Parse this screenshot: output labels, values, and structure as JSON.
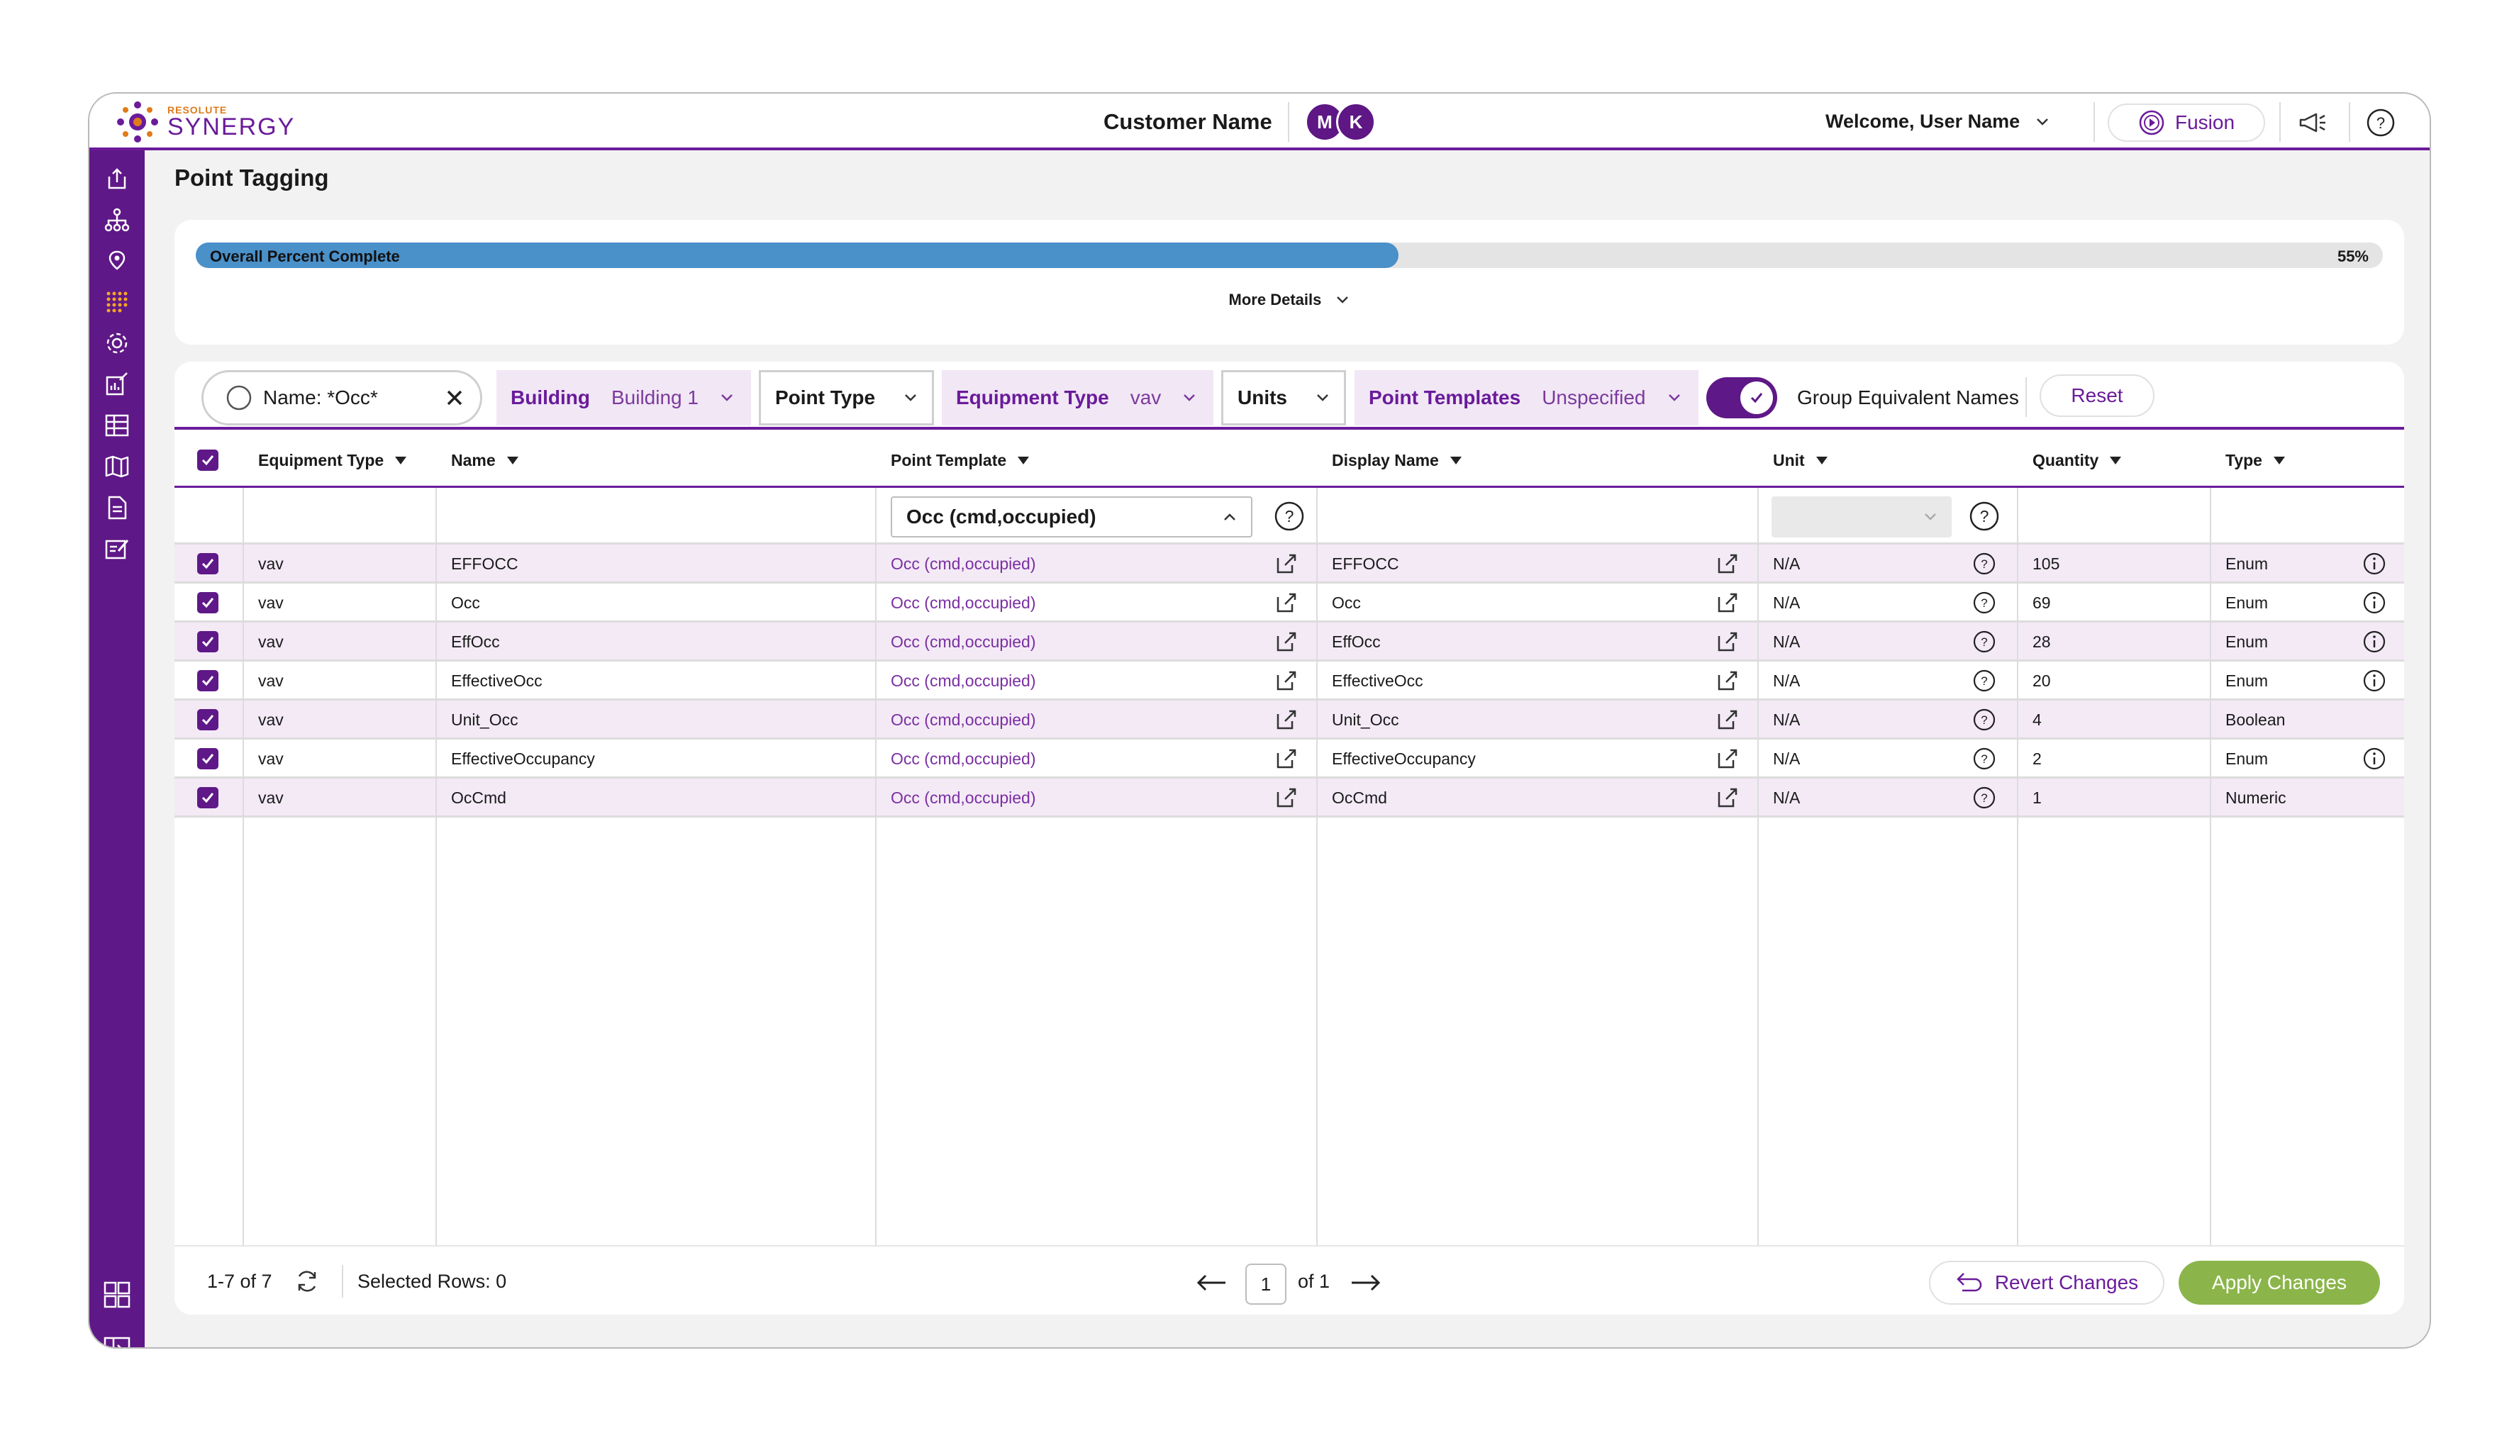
{
  "header": {
    "logo_small": "RESOLUTE",
    "logo_big": "SYNERGY",
    "customer_name": "Customer Name",
    "avatars": [
      "M",
      "K"
    ],
    "welcome": "Welcome, User Name",
    "fusion_label": "Fusion"
  },
  "page": {
    "title": "Point Tagging"
  },
  "progress": {
    "label": "Overall Percent Complete",
    "percent_text": "55%",
    "percent": 55,
    "more_details": "More Details"
  },
  "filters": {
    "search_value": "Name: *Occ*",
    "building": {
      "label": "Building",
      "value": "Building 1"
    },
    "point_type": {
      "label": "Point Type"
    },
    "equipment_type": {
      "label": "Equipment Type",
      "value": "vav"
    },
    "units": {
      "label": "Units"
    },
    "point_templates": {
      "label": "Point Templates",
      "value": "Unspecified"
    },
    "group_equivalent": {
      "label": "Group Equivalent Names",
      "on": true
    },
    "reset_label": "Reset"
  },
  "table": {
    "columns": [
      "Equipment Type",
      "Name",
      "Point Template",
      "Display Name",
      "Unit",
      "Quantity",
      "Type"
    ],
    "edit_row": {
      "point_template_value": "Occ (cmd,occupied)"
    },
    "rows": [
      {
        "equipment_type": "vav",
        "name": "EFFOCC",
        "point_template": "Occ (cmd,occupied)",
        "display_name": "EFFOCC",
        "unit": "N/A",
        "quantity": "105",
        "type": "Enum",
        "info": true,
        "checked": true
      },
      {
        "equipment_type": "vav",
        "name": "Occ",
        "point_template": "Occ (cmd,occupied)",
        "display_name": "Occ",
        "unit": "N/A",
        "quantity": "69",
        "type": "Enum",
        "info": true,
        "checked": true
      },
      {
        "equipment_type": "vav",
        "name": "EffOcc",
        "point_template": "Occ (cmd,occupied)",
        "display_name": "EffOcc",
        "unit": "N/A",
        "quantity": "28",
        "type": "Enum",
        "info": true,
        "checked": true
      },
      {
        "equipment_type": "vav",
        "name": "EffectiveOcc",
        "point_template": "Occ (cmd,occupied)",
        "display_name": "EffectiveOcc",
        "unit": "N/A",
        "quantity": "20",
        "type": "Enum",
        "info": true,
        "checked": true
      },
      {
        "equipment_type": "vav",
        "name": "Unit_Occ",
        "point_template": "Occ (cmd,occupied)",
        "display_name": "Unit_Occ",
        "unit": "N/A",
        "quantity": "4",
        "type": "Boolean",
        "info": false,
        "checked": true
      },
      {
        "equipment_type": "vav",
        "name": "EffectiveOccupancy",
        "point_template": "Occ (cmd,occupied)",
        "display_name": "EffectiveOccupancy",
        "unit": "N/A",
        "quantity": "2",
        "type": "Enum",
        "info": true,
        "checked": true
      },
      {
        "equipment_type": "vav",
        "name": "OcCmd",
        "point_template": "Occ (cmd,occupied)",
        "display_name": "OcCmd",
        "unit": "N/A",
        "quantity": "1",
        "type": "Numeric",
        "info": false,
        "checked": true
      }
    ]
  },
  "footer": {
    "range": "1-7 of 7",
    "selected_rows": "Selected Rows: 0",
    "page": "1",
    "of_pages": "of 1",
    "revert_label": "Revert Changes",
    "apply_label": "Apply Changes"
  },
  "colors": {
    "primary": "#5f1887",
    "accent": "#6a1b9a",
    "progress": "#4a90c9",
    "apply": "#8bb54a",
    "row_alt": "#f3eaf6"
  }
}
